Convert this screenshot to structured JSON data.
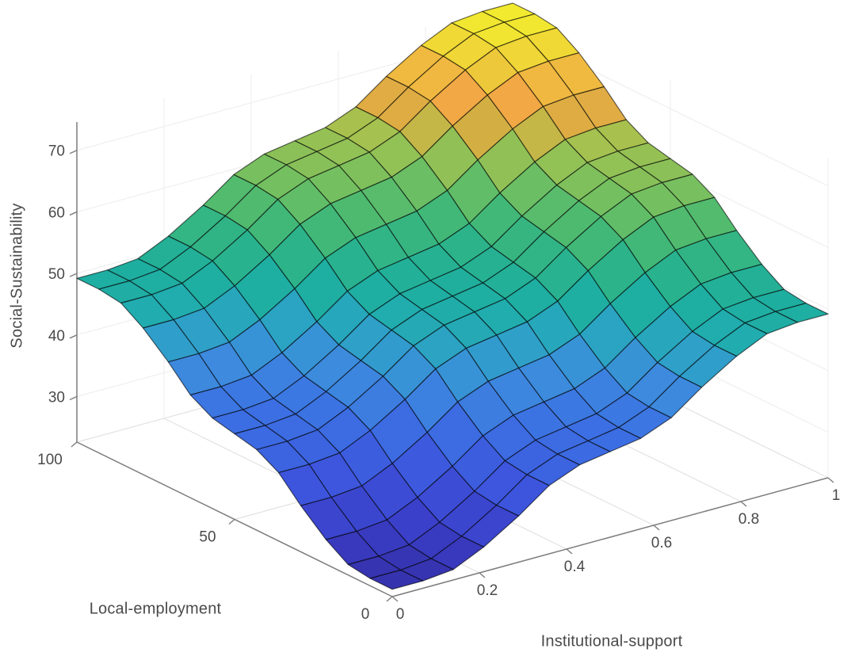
{
  "figure": {
    "background": "#ffffff",
    "axis_line_color": "#7d7d7d",
    "tick_text_color": "#4a4a4a",
    "mesh_edge_color": "rgba(0,0,0,0.6)",
    "floor_grid_color": "#e2e2e2",
    "wall_grid_color": "#efefef"
  },
  "axes": {
    "x": {
      "label": "Institutional-support",
      "range": [
        0,
        1
      ],
      "ticks": [
        0,
        0.2,
        0.4,
        0.6,
        0.8,
        1
      ],
      "tick_labels": [
        "0",
        "0.2",
        "0.4",
        "0.6",
        "0.8",
        "1"
      ]
    },
    "y": {
      "label": "Local-employment",
      "range": [
        0,
        100
      ],
      "ticks": [
        0,
        50,
        100
      ],
      "tick_labels": [
        "0",
        "50",
        "100"
      ]
    },
    "z": {
      "label": "Social-Sustainability",
      "range": [
        22.6,
        74.6
      ],
      "ticks": [
        30,
        40,
        50,
        60,
        70
      ],
      "tick_labels": [
        "30",
        "40",
        "50",
        "60",
        "70"
      ]
    }
  },
  "chart_data": {
    "type": "surface",
    "closest_type": "heatmap",
    "title": "",
    "xlabel": "Institutional-support",
    "ylabel": "Local-employment",
    "zlabel": "Social-Sustainability",
    "grid": true,
    "legend": false,
    "x": [
      0,
      0.07,
      0.14,
      0.21,
      0.29,
      0.36,
      0.43,
      0.5,
      0.57,
      0.64,
      0.71,
      0.79,
      0.86,
      0.93,
      1
    ],
    "y": [
      0,
      7,
      14,
      21,
      29,
      36,
      43,
      50,
      57,
      64,
      71,
      79,
      86,
      93,
      100
    ],
    "zlim": [
      22.6,
      74.6
    ],
    "z": [
      [
        23.8,
        23.8,
        24.3,
        26.6,
        30.1,
        33.7,
        35.7,
        36.5,
        37.3,
        39.3,
        42.9,
        46.4,
        48.7,
        49.2,
        49.2
      ],
      [
        23.8,
        23.8,
        24.3,
        26.6,
        30.1,
        33.7,
        35.7,
        36.5,
        37.3,
        39.3,
        42.9,
        46.4,
        48.7,
        49.2,
        49.2
      ],
      [
        24.3,
        24.3,
        24.8,
        27.1,
        30.6,
        34.2,
        36.2,
        37.0,
        37.8,
        39.8,
        43.4,
        46.9,
        49.2,
        49.7,
        49.7
      ],
      [
        26.6,
        26.6,
        27.1,
        29.4,
        32.9,
        36.5,
        38.5,
        39.3,
        40.1,
        42.1,
        45.7,
        49.2,
        51.5,
        52.0,
        52.0
      ],
      [
        30.1,
        30.1,
        30.6,
        32.9,
        36.4,
        40.0,
        42.0,
        42.8,
        43.6,
        45.6,
        49.2,
        52.7,
        55.0,
        55.5,
        55.5
      ],
      [
        33.7,
        33.7,
        34.2,
        36.5,
        40.0,
        43.6,
        45.6,
        46.4,
        47.2,
        49.2,
        52.8,
        56.3,
        58.6,
        59.1,
        59.1
      ],
      [
        35.7,
        35.7,
        36.2,
        38.5,
        42.0,
        45.6,
        47.6,
        48.4,
        49.2,
        51.2,
        54.8,
        58.3,
        60.6,
        61.1,
        61.1
      ],
      [
        36.5,
        36.5,
        37.0,
        39.3,
        42.8,
        46.4,
        48.4,
        49.2,
        50.0,
        52.0,
        55.6,
        59.1,
        61.4,
        61.9,
        61.9
      ],
      [
        37.3,
        37.3,
        37.8,
        40.1,
        43.6,
        47.2,
        49.2,
        50.0,
        50.8,
        52.8,
        56.4,
        59.9,
        62.2,
        62.7,
        62.7
      ],
      [
        39.3,
        39.3,
        39.8,
        42.1,
        45.6,
        49.2,
        51.2,
        52.0,
        52.8,
        54.8,
        58.4,
        61.9,
        64.2,
        64.7,
        64.7
      ],
      [
        42.9,
        42.9,
        43.4,
        45.7,
        49.2,
        52.8,
        54.8,
        55.6,
        56.4,
        58.4,
        62.0,
        65.5,
        67.8,
        68.3,
        68.3
      ],
      [
        46.4,
        46.4,
        46.9,
        49.2,
        52.7,
        56.3,
        58.3,
        59.1,
        59.9,
        61.9,
        65.5,
        69.0,
        71.3,
        71.8,
        71.8
      ],
      [
        48.7,
        48.7,
        49.2,
        51.5,
        55.0,
        58.6,
        60.6,
        61.4,
        62.2,
        64.2,
        67.8,
        71.3,
        73.6,
        74.1,
        74.1
      ],
      [
        49.2,
        49.2,
        49.7,
        52.0,
        55.5,
        59.1,
        61.1,
        61.9,
        62.7,
        64.7,
        68.3,
        71.8,
        74.1,
        74.6,
        74.6
      ],
      [
        49.2,
        49.2,
        49.7,
        52.0,
        55.5,
        59.1,
        61.1,
        61.9,
        62.7,
        64.7,
        68.3,
        71.8,
        74.1,
        74.6,
        74.6
      ]
    ],
    "colormap": {
      "name": "parula-like",
      "stops": [
        [
          0.0,
          "#342ea5"
        ],
        [
          0.08,
          "#3a3ec8"
        ],
        [
          0.18,
          "#3d55dd"
        ],
        [
          0.28,
          "#3c6fe3"
        ],
        [
          0.36,
          "#3d8ade"
        ],
        [
          0.43,
          "#2fa0c8"
        ],
        [
          0.48,
          "#21acb0"
        ],
        [
          0.52,
          "#1eae9e"
        ],
        [
          0.58,
          "#2cb38a"
        ],
        [
          0.65,
          "#47b973"
        ],
        [
          0.72,
          "#77c05f"
        ],
        [
          0.79,
          "#a8c14e"
        ],
        [
          0.83,
          "#d9ad42"
        ],
        [
          0.88,
          "#f2a845"
        ],
        [
          0.93,
          "#eec43c"
        ],
        [
          1.0,
          "#f2ea2f"
        ]
      ]
    }
  }
}
